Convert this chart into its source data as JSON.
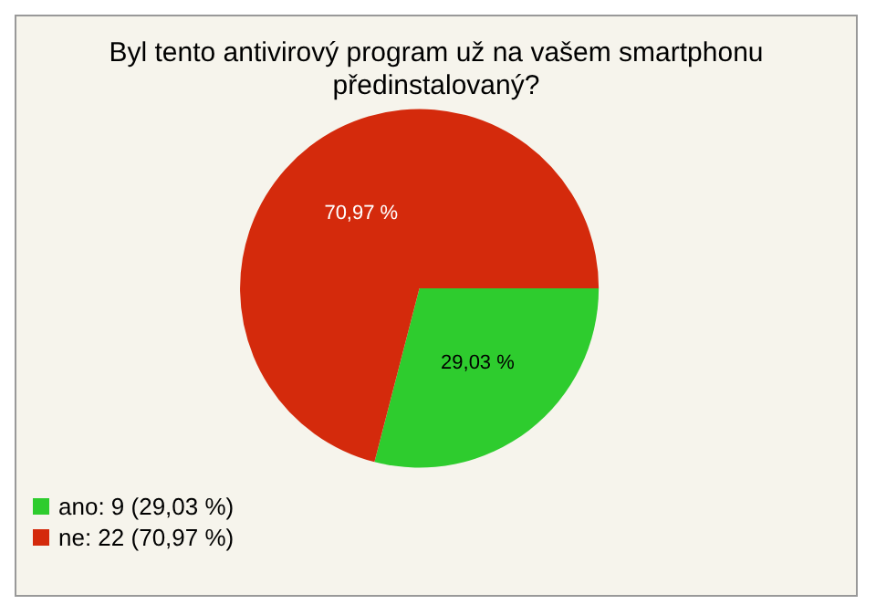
{
  "chart_data": {
    "type": "pie",
    "title": "Byl tento antivirový program už na vašem smartphonu\npředinstalovaný?",
    "categories": [
      "ano: 9 (29,03 %)",
      "ne: 22 (70,97 %)"
    ],
    "values": [
      29.03,
      70.97
    ],
    "value_labels": [
      "29,03 %",
      "70,97 %"
    ],
    "colors": [
      "#2ecc2e",
      "#d42a0c"
    ],
    "legend": "bottom left"
  }
}
